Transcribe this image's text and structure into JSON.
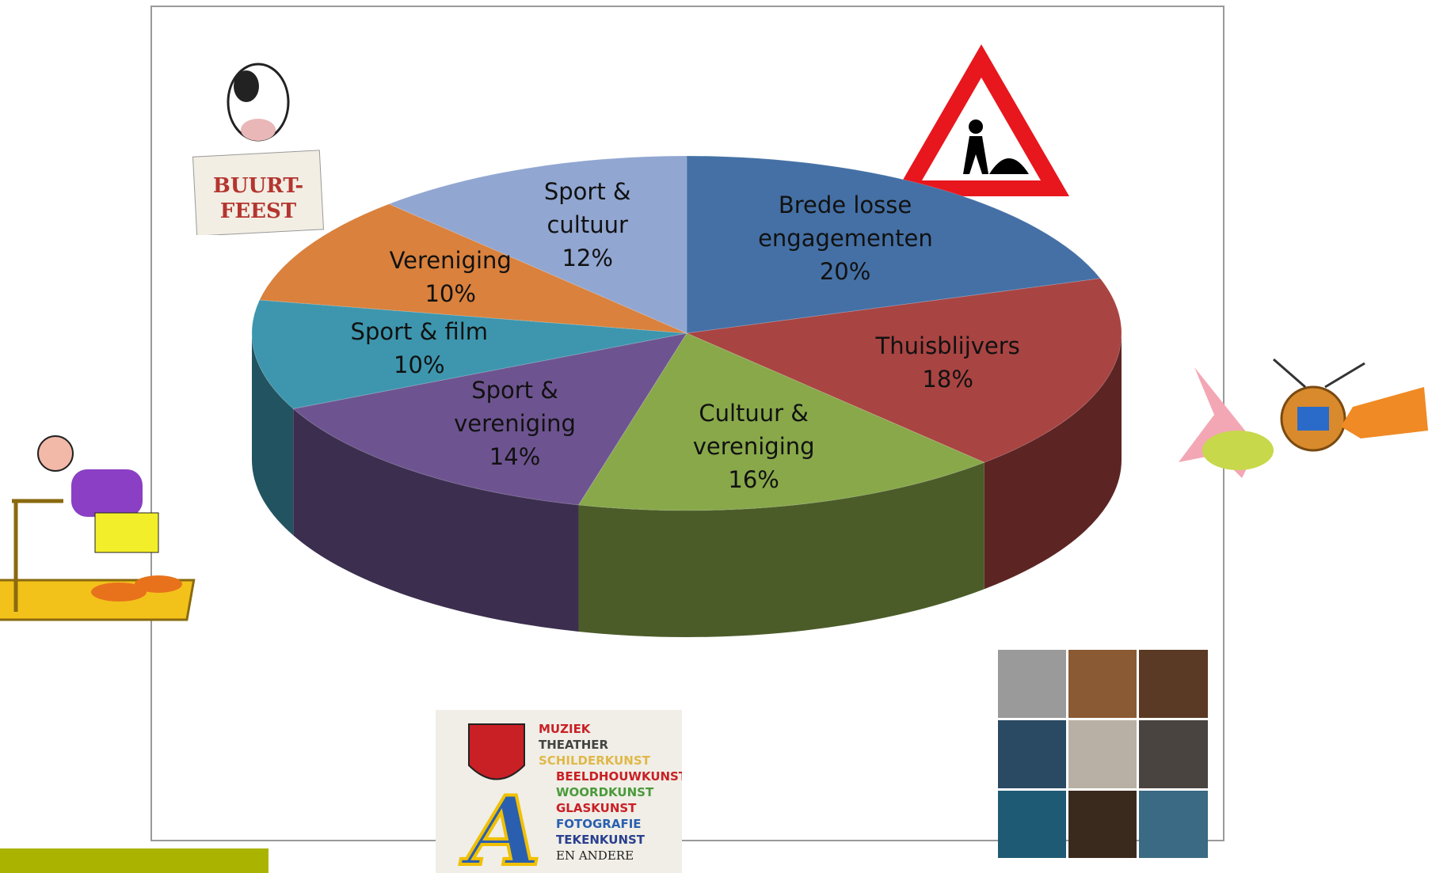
{
  "chart_data": {
    "type": "pie3d",
    "categories": [
      "Brede losse engagementen",
      "Thuisblijvers",
      "Cultuur & vereniging",
      "Sport & vereniging",
      "Sport & film",
      "Vereniging",
      "Sport & cultuur"
    ],
    "values": [
      20,
      18,
      16,
      14,
      10,
      10,
      12
    ],
    "value_labels": [
      "20%",
      "18%",
      "16%",
      "14%",
      "10%",
      "10%",
      "12%"
    ],
    "colors": [
      "#4470a5",
      "#a84442",
      "#88a84a",
      "#6d5490",
      "#3d96ae",
      "#d9813d",
      "#91a6d1"
    ]
  },
  "decorations": {
    "buurtfeest": [
      "BUURT-",
      "FEEST"
    ],
    "kunst": [
      "MUZIEK",
      "THEATHER",
      "SCHILDERKUNST",
      "BEELDHOUWKUNST",
      "WOORDKUNST",
      "GLASKUNST",
      "FOTOGRAFIE",
      "TEKENKUNST",
      "EN ANDERE"
    ]
  }
}
